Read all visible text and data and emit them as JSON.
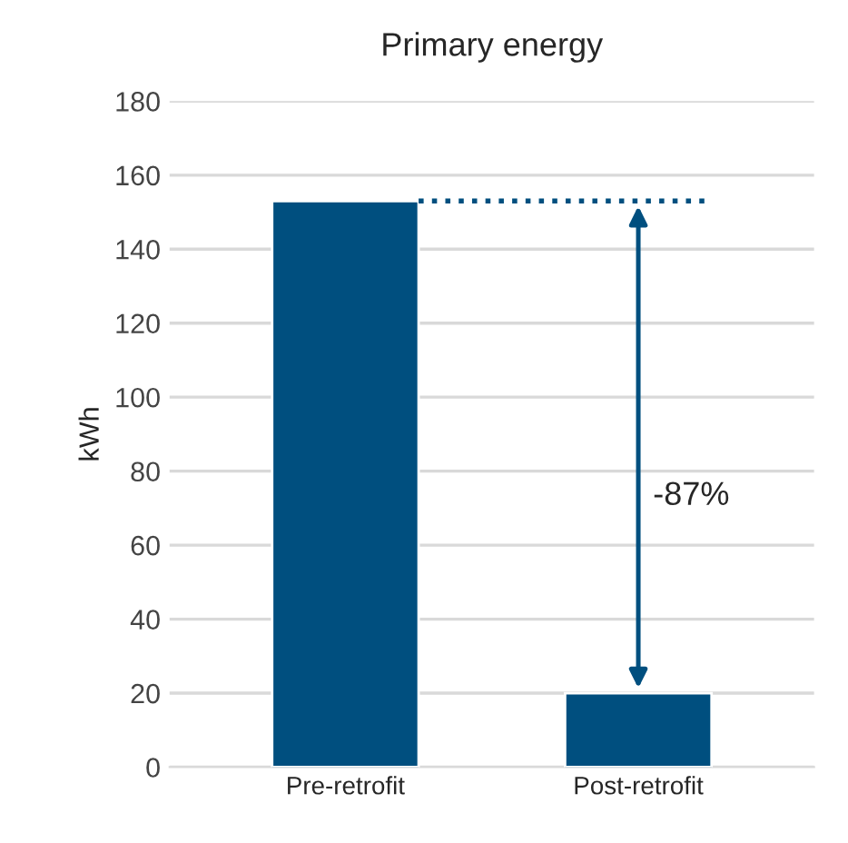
{
  "chart_data": {
    "type": "bar",
    "title": "Primary energy",
    "ylabel": "kWh",
    "categories": [
      "Pre-retrofit",
      "Post-retrofit"
    ],
    "series": [
      {
        "color": "#004f7f",
        "values": [
          153,
          20
        ]
      }
    ],
    "ylim": [
      0,
      180
    ],
    "yticks": [
      0,
      20,
      40,
      60,
      80,
      100,
      120,
      140,
      160,
      180
    ],
    "grid": "y",
    "legend": false,
    "ref_lines": [
      {
        "axis": "y",
        "value": 153,
        "color": "#004f7f",
        "line_style": "dotted"
      }
    ],
    "annotations": [
      "-87%"
    ]
  }
}
